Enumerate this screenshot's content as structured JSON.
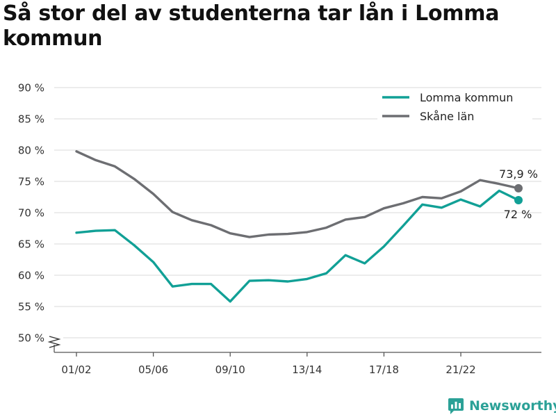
{
  "page": {
    "title": "Så stor del av studenterna tar lån i Lomma kommun"
  },
  "brand": {
    "name": "Newsworthy",
    "icon": "bar-chart-logo-icon",
    "color": "#2ba197"
  },
  "chart_data": {
    "type": "line",
    "title": "Så stor del av studenterna tar lån i Lomma kommun",
    "xlabel": "",
    "ylabel": "",
    "ylim": [
      50,
      90
    ],
    "y_axis_broken": true,
    "yticks": [
      50,
      55,
      60,
      65,
      70,
      75,
      80,
      85,
      90
    ],
    "ytick_labels": [
      "50 %",
      "55 %",
      "60 %",
      "65 %",
      "70 %",
      "75 %",
      "80 %",
      "85 %",
      "90 %"
    ],
    "x": [
      "01/02",
      "02/03",
      "03/04",
      "04/05",
      "05/06",
      "06/07",
      "07/08",
      "08/09",
      "09/10",
      "10/11",
      "11/12",
      "12/13",
      "13/14",
      "14/15",
      "15/16",
      "16/17",
      "17/18",
      "18/19",
      "19/20",
      "20/21",
      "21/22",
      "22/23",
      "23/24",
      "24/25"
    ],
    "xtick_labels": [
      "01/02",
      "05/06",
      "09/10",
      "13/14",
      "17/18",
      "21/22"
    ],
    "grid": true,
    "legend_position": "top-right",
    "series": [
      {
        "name": "Lomma kommun",
        "color": "#11a096",
        "values": [
          66.8,
          67.1,
          67.2,
          64.8,
          62.1,
          58.2,
          58.6,
          58.6,
          55.8,
          59.1,
          59.2,
          59.0,
          59.4,
          60.3,
          63.2,
          61.9,
          64.6,
          67.9,
          71.3,
          70.8,
          72.1,
          71.0,
          73.5,
          72.0
        ],
        "end_label": "72 %"
      },
      {
        "name": "Skåne län",
        "color": "#6d6e72",
        "values": [
          79.8,
          78.4,
          77.4,
          75.4,
          73.0,
          70.1,
          68.8,
          68.0,
          66.7,
          66.1,
          66.5,
          66.6,
          66.9,
          67.6,
          68.9,
          69.3,
          70.7,
          71.5,
          72.5,
          72.3,
          73.4,
          75.2,
          74.6,
          73.9
        ],
        "end_label": "73,9 %"
      }
    ]
  }
}
